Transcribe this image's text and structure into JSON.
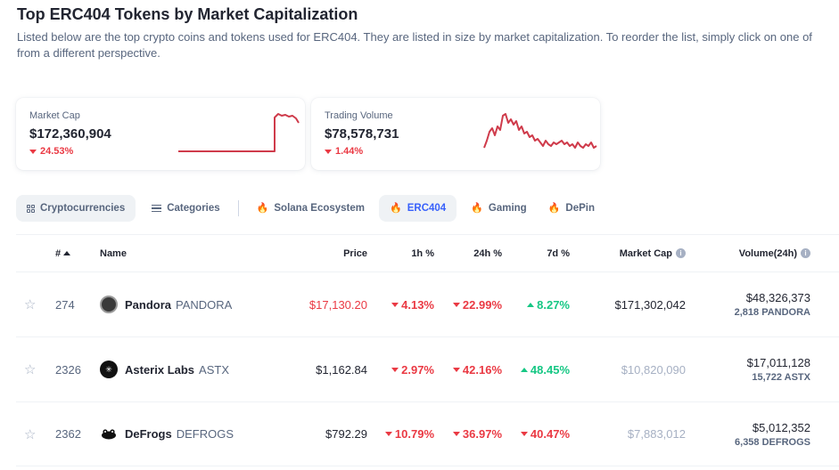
{
  "page": {
    "title": "Top ERC404 Tokens by Market Capitalization",
    "description_line1": "Listed below are the top crypto coins and tokens used for ERC404. They are listed in size by market capitalization. To reorder the list, simply click on one of",
    "description_line2": "from a different perspective."
  },
  "stats": {
    "market_cap": {
      "label": "Market Cap",
      "value": "$172,360,904",
      "change": "24.53%",
      "direction": "down"
    },
    "trading_volume": {
      "label": "Trading Volume",
      "value": "$78,578,731",
      "change": "1.44%",
      "direction": "down"
    },
    "sparkline_color": "#cf3b4b"
  },
  "tabs": [
    {
      "label": "Cryptocurrencies",
      "icon": "grid-icon",
      "state": "gray"
    },
    {
      "label": "Categories",
      "icon": "list-icon",
      "state": "normal"
    },
    {
      "label": "Solana Ecosystem",
      "icon": "fire-icon",
      "state": "normal"
    },
    {
      "label": "ERC404",
      "icon": "fire-icon",
      "state": "active"
    },
    {
      "label": "Gaming",
      "icon": "fire-icon",
      "state": "normal"
    },
    {
      "label": "DePin",
      "icon": "fire-icon",
      "state": "normal"
    }
  ],
  "table": {
    "headers": {
      "rank": "#",
      "name": "Name",
      "price": "Price",
      "h1": "1h %",
      "h24": "24h %",
      "d7": "7d %",
      "market_cap": "Market Cap",
      "volume": "Volume(24h)"
    },
    "rows": [
      {
        "rank": "274",
        "name": "Pandora",
        "symbol": "PANDORA",
        "price": "$17,130.20",
        "price_color": "#ea3943",
        "h1": "4.13%",
        "h1_dir": "down",
        "h24": "22.99%",
        "h24_dir": "down",
        "d7": "8.27%",
        "d7_dir": "up",
        "market_cap": "$171,302,042",
        "market_cap_muted": false,
        "volume": "$48,326,373",
        "volume_sub": "2,818 PANDORA",
        "logo_bg": "#3a3a3a",
        "logo_text": ""
      },
      {
        "rank": "2326",
        "name": "Asterix Labs",
        "symbol": "ASTX",
        "price": "$1,162.84",
        "price_color": "#222531",
        "h1": "2.97%",
        "h1_dir": "down",
        "h24": "42.16%",
        "h24_dir": "down",
        "d7": "48.45%",
        "d7_dir": "up",
        "market_cap": "$10,820,090",
        "market_cap_muted": true,
        "volume": "$17,011,128",
        "volume_sub": "15,722 ASTX",
        "logo_bg": "#111111",
        "logo_text": "*"
      },
      {
        "rank": "2362",
        "name": "DeFrogs",
        "symbol": "DEFROGS",
        "price": "$792.29",
        "price_color": "#222531",
        "h1": "10.79%",
        "h1_dir": "down",
        "h24": "36.97%",
        "h24_dir": "down",
        "d7": "40.47%",
        "d7_dir": "down",
        "market_cap": "$7,883,012",
        "market_cap_muted": true,
        "volume": "$5,012,352",
        "volume_sub": "6,358 DEFROGS",
        "logo_bg": "#ffffff",
        "logo_text": "frog"
      }
    ]
  },
  "colors": {
    "negative": "#ea3943",
    "positive": "#16c784",
    "active_tab": "#3861fb",
    "muted": "#a6b0c3"
  }
}
